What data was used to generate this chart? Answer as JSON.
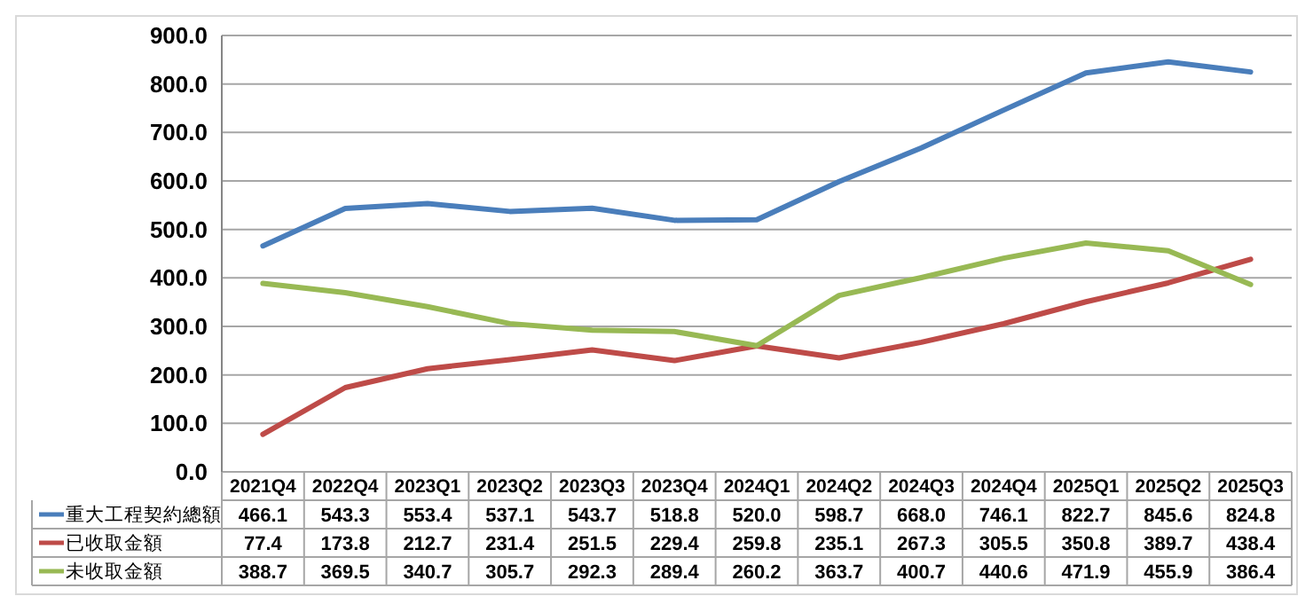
{
  "chart_data": {
    "type": "line",
    "categories": [
      "2021Q4",
      "2022Q4",
      "2023Q1",
      "2023Q2",
      "2023Q3",
      "2023Q4",
      "2024Q1",
      "2024Q2",
      "2024Q3",
      "2024Q4",
      "2025Q1",
      "2025Q2",
      "2025Q3"
    ],
    "series": [
      {
        "name": "重大工程契約總額",
        "color": "#4a7ebb",
        "values": [
          466.1,
          543.3,
          553.4,
          537.1,
          543.7,
          518.8,
          520.0,
          598.7,
          668.0,
          746.1,
          822.7,
          845.6,
          824.8
        ],
        "value_labels": [
          "466.1",
          "543.3",
          "553.4",
          "537.1",
          "543.7",
          "518.8",
          "520.0",
          "598.7",
          "668.0",
          "746.1",
          "822.7",
          "845.6",
          "824.8"
        ]
      },
      {
        "name": "已收取金額",
        "color": "#be4b48",
        "values": [
          77.4,
          173.8,
          212.7,
          231.4,
          251.5,
          229.4,
          259.8,
          235.1,
          267.3,
          305.5,
          350.8,
          389.7,
          438.4
        ],
        "value_labels": [
          "77.4",
          "173.8",
          "212.7",
          "231.4",
          "251.5",
          "229.4",
          "259.8",
          "235.1",
          "267.3",
          "305.5",
          "350.8",
          "389.7",
          "438.4"
        ]
      },
      {
        "name": "未收取金額",
        "color": "#98b954",
        "values": [
          388.7,
          369.5,
          340.7,
          305.7,
          292.3,
          289.4,
          260.2,
          363.7,
          400.7,
          440.6,
          471.9,
          455.9,
          386.4
        ],
        "value_labels": [
          "388.7",
          "369.5",
          "340.7",
          "305.7",
          "292.3",
          "289.4",
          "260.2",
          "363.7",
          "400.7",
          "440.6",
          "471.9",
          "455.9",
          "386.4"
        ]
      }
    ],
    "ylim": [
      0,
      900
    ],
    "yticks": [
      {
        "value": 0,
        "label": "0.0"
      },
      {
        "value": 100,
        "label": "100.0"
      },
      {
        "value": 200,
        "label": "200.0"
      },
      {
        "value": 300,
        "label": "300.0"
      },
      {
        "value": 400,
        "label": "400.0"
      },
      {
        "value": 500,
        "label": "500.0"
      },
      {
        "value": 600,
        "label": "600.0"
      },
      {
        "value": 700,
        "label": "700.0"
      },
      {
        "value": 800,
        "label": "800.0"
      },
      {
        "value": 900,
        "label": "900.0"
      }
    ],
    "grid": "y",
    "legend": "bottom",
    "line_style": "solid",
    "marker": "none"
  }
}
